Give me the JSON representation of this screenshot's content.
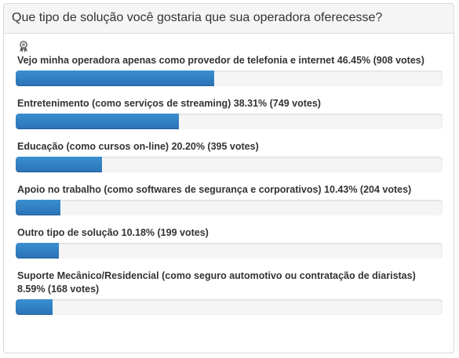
{
  "poll": {
    "question": "Que tipo de solução você gostaria que sua operadora oferecesse?",
    "winner_icon": "award-ribbon-icon",
    "bar_color": "#2f7dc2",
    "options": [
      {
        "label": "Vejo minha operadora apenas como provedor de telefonia e internet 46.45% (908 votes)",
        "percent": 46.45
      },
      {
        "label": "Entretenimento (como serviços de streaming) 38.31% (749 votes)",
        "percent": 38.31
      },
      {
        "label": "Educação (como cursos on-line) 20.20% (395 votes)",
        "percent": 20.2
      },
      {
        "label": "Apoio no trabalho (como softwares de segurança e corporativos) 10.43% (204 votes)",
        "percent": 10.43
      },
      {
        "label": "Outro tipo de solução 10.18% (199 votes)",
        "percent": 10.18
      },
      {
        "label": "Suporte Mecânico/Residencial (como seguro automotivo ou contratação de diaristas) 8.59% (168 votes)",
        "percent": 8.59
      }
    ]
  }
}
